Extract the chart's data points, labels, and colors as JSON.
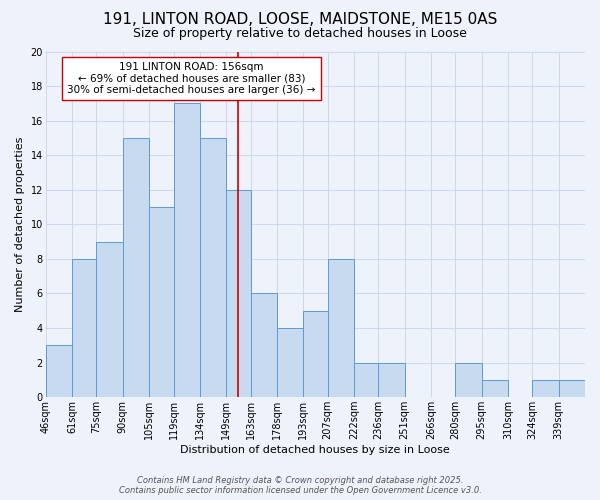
{
  "title": "191, LINTON ROAD, LOOSE, MAIDSTONE, ME15 0AS",
  "subtitle": "Size of property relative to detached houses in Loose",
  "xlabel": "Distribution of detached houses by size in Loose",
  "ylabel": "Number of detached properties",
  "bin_labels": [
    "46sqm",
    "61sqm",
    "75sqm",
    "90sqm",
    "105sqm",
    "119sqm",
    "134sqm",
    "149sqm",
    "163sqm",
    "178sqm",
    "193sqm",
    "207sqm",
    "222sqm",
    "236sqm",
    "251sqm",
    "266sqm",
    "280sqm",
    "295sqm",
    "310sqm",
    "324sqm",
    "339sqm"
  ],
  "bin_edges": [
    46,
    61,
    75,
    90,
    105,
    119,
    134,
    149,
    163,
    178,
    193,
    207,
    222,
    236,
    251,
    266,
    280,
    295,
    310,
    324,
    339,
    354
  ],
  "bar_heights": [
    3,
    8,
    9,
    15,
    11,
    17,
    15,
    12,
    6,
    4,
    5,
    8,
    2,
    2,
    0,
    0,
    2,
    1,
    0,
    1,
    1
  ],
  "bar_color": "#c8daf0",
  "bar_edge_color": "#5b9bd5",
  "grid_color": "#c8d4e8",
  "bg_color": "#eef2fa",
  "property_value": 156,
  "red_line_color": "#cc0000",
  "annotation_text_line1": "191 LINTON ROAD: 156sqm",
  "annotation_text_line2": "← 69% of detached houses are smaller (83)",
  "annotation_text_line3": "30% of semi-detached houses are larger (36) →",
  "annotation_box_edge_color": "#cc0000",
  "annotation_bg_color": "#ffffff",
  "ylim": [
    0,
    20
  ],
  "yticks": [
    0,
    2,
    4,
    6,
    8,
    10,
    12,
    14,
    16,
    18,
    20
  ],
  "footer_line1": "Contains HM Land Registry data © Crown copyright and database right 2025.",
  "footer_line2": "Contains public sector information licensed under the Open Government Licence v3.0.",
  "title_fontsize": 11,
  "subtitle_fontsize": 9,
  "axis_label_fontsize": 8,
  "tick_fontsize": 7,
  "annotation_fontsize": 7.5,
  "footer_fontsize": 6
}
